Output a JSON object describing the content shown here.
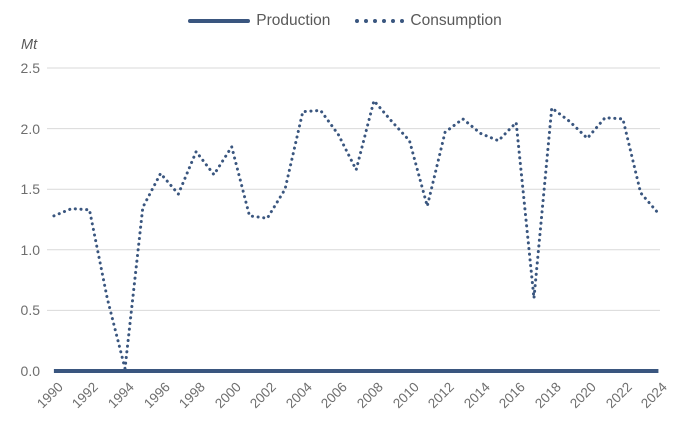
{
  "chart_data": {
    "type": "line",
    "title": "",
    "ylabel": "Mt",
    "x": [
      1990,
      1991,
      1992,
      1993,
      1994,
      1995,
      1996,
      1997,
      1998,
      1999,
      2000,
      2001,
      2002,
      2003,
      2004,
      2005,
      2006,
      2007,
      2008,
      2009,
      2010,
      2011,
      2012,
      2013,
      2014,
      2015,
      2016,
      2017,
      2018,
      2019,
      2020,
      2021,
      2022,
      2023,
      2024
    ],
    "series": [
      {
        "name": "Production",
        "style": "solid",
        "values": [
          0,
          0,
          0,
          0,
          0,
          0,
          0,
          0,
          0,
          0,
          0,
          0,
          0,
          0,
          0,
          0,
          0,
          0,
          0,
          0,
          0,
          0,
          0,
          0,
          0,
          0,
          0,
          0,
          0,
          0,
          0,
          0,
          0,
          0,
          0
        ]
      },
      {
        "name": "Consumption",
        "style": "dotted",
        "values": [
          1.28,
          1.34,
          1.33,
          0.6,
          0.02,
          1.35,
          1.63,
          1.46,
          1.81,
          1.62,
          1.85,
          1.28,
          1.26,
          1.5,
          2.14,
          2.15,
          1.95,
          1.66,
          2.23,
          2.06,
          1.9,
          1.36,
          1.97,
          2.08,
          1.96,
          1.9,
          2.05,
          0.6,
          2.17,
          2.06,
          1.92,
          2.09,
          2.08,
          1.47,
          1.3
        ]
      }
    ],
    "ylim": [
      0,
      2.5
    ],
    "yticks": [
      0,
      0.5,
      1,
      1.5,
      2,
      2.5
    ],
    "xtick_years": [
      1990,
      1992,
      1994,
      1996,
      1998,
      2000,
      2002,
      2004,
      2006,
      2008,
      2010,
      2012,
      2014,
      2016,
      2018,
      2020,
      2022,
      2024
    ],
    "grid": "horizontal",
    "legend_position": "top-center",
    "colors": {
      "series": "#3A567F",
      "grid": "#D9D9D9",
      "tick_label": "#6E6E6E",
      "legend_text": "#595959"
    }
  }
}
